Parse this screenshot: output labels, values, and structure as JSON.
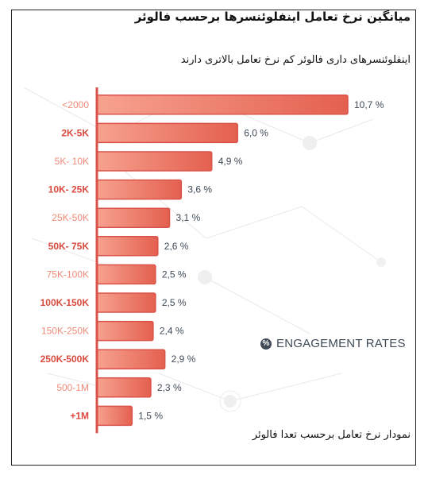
{
  "header": {
    "title": "میانگین نرخ تعامل اینفلوئنسرها برحسب فالوئر",
    "subtitle": "اینفلوئنسرهای داری فالوئر کم نرخ تعامل بالاتری دارند"
  },
  "footer": {
    "caption": "نمودار نرخ تعامل برحسب تعدا فالوئر"
  },
  "brand": {
    "label": "ENGAGEMENT RATES",
    "icon": "percent-circle-icon",
    "color": "#3f4a57"
  },
  "colors": {
    "bar_light": "#f7a290",
    "bar_dark": "#e4604f",
    "bar_stroke": "#d9534a",
    "axis": "#d9534a",
    "label_strong": "#d94a3e",
    "label_soft": "#f08a78"
  },
  "chart_data": {
    "type": "bar",
    "orientation": "horizontal",
    "title": "میانگین نرخ تعامل اینفلوئنسرها برحسب فالوئر",
    "subtitle": "اینفلوئنسرهای داری فالوئر کم نرخ تعامل بالاتری دارند",
    "xlabel": "",
    "ylabel": "",
    "xlim": [
      0,
      10.7
    ],
    "grid": false,
    "categories": [
      "<2000",
      "2K-5K",
      "5K- 10K",
      "10K- 25K",
      "25K-50K",
      "50K- 75K",
      "75K-100K",
      "100K-150K",
      "150K-250K",
      "250K-500K",
      "500-1M",
      "+1M"
    ],
    "values": [
      10.7,
      6.0,
      4.9,
      3.6,
      3.1,
      2.6,
      2.5,
      2.5,
      2.4,
      2.9,
      2.3,
      1.5
    ],
    "value_labels": [
      "10,7 %",
      "6,0 %",
      "4,9 %",
      "3,6 %",
      "3,1 %",
      "2,6 %",
      "2,5 %",
      "2,5 %",
      "2,4 %",
      "2,9 %",
      "2,3 %",
      "1,5 %"
    ],
    "label_weight": [
      "soft",
      "strong",
      "soft",
      "strong",
      "soft",
      "strong",
      "soft",
      "strong",
      "soft",
      "strong",
      "soft",
      "strong"
    ]
  }
}
